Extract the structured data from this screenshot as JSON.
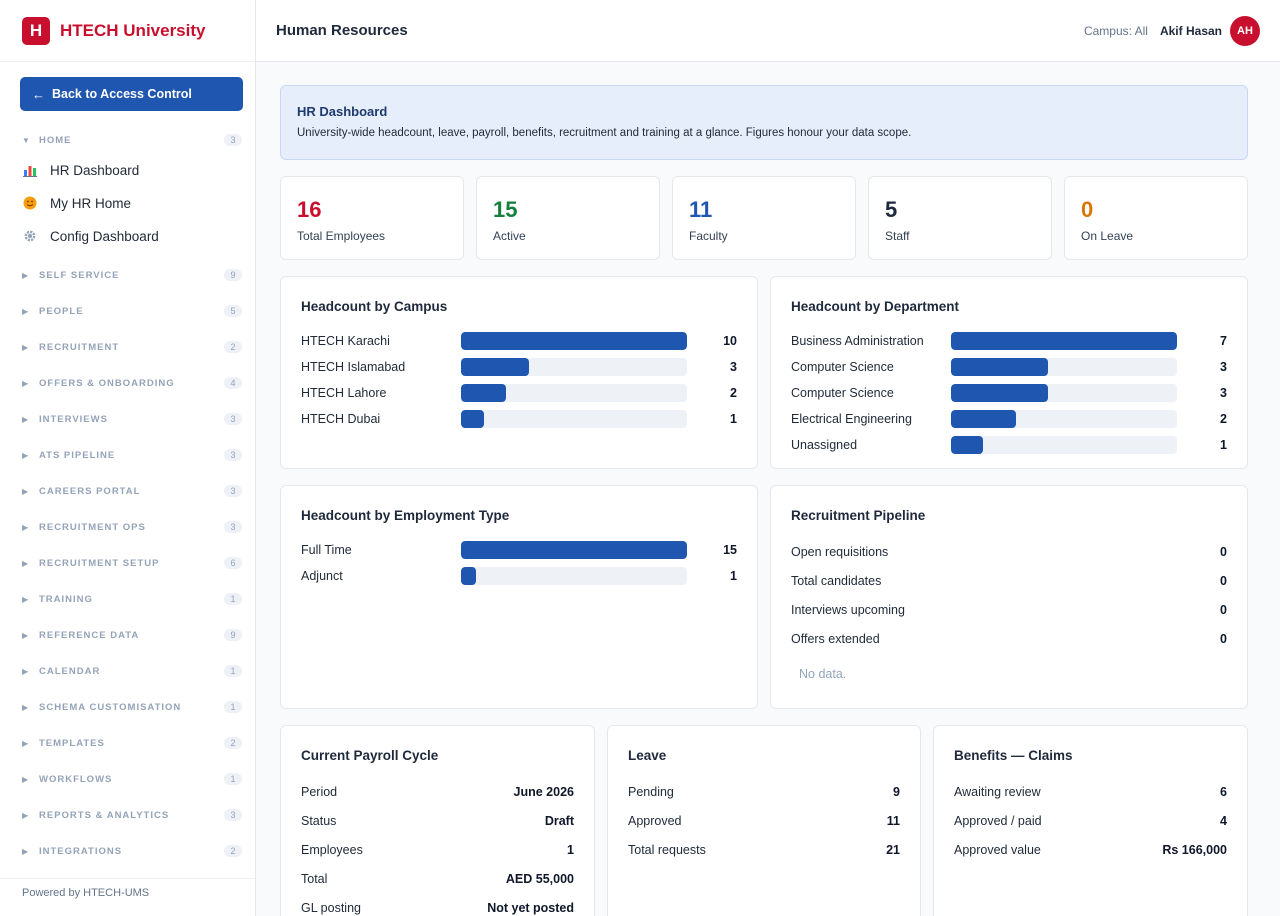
{
  "brand": {
    "logo_letter": "H",
    "name": "HTECH University"
  },
  "back_button": {
    "label": "Back to Access Control",
    "icon": "arrow-left-icon"
  },
  "sidebar": {
    "home": {
      "label": "HOME",
      "count": "3",
      "expanded": true
    },
    "home_items": [
      {
        "label": "HR Dashboard",
        "icon": "bar-chart-icon"
      },
      {
        "label": "My HR Home",
        "icon": "smiley-icon"
      },
      {
        "label": "Config Dashboard",
        "icon": "gear-icon"
      }
    ],
    "sections": [
      {
        "label": "SELF SERVICE",
        "count": "9"
      },
      {
        "label": "PEOPLE",
        "count": "5"
      },
      {
        "label": "RECRUITMENT",
        "count": "2"
      },
      {
        "label": "OFFERS & ONBOARDING",
        "count": "4"
      },
      {
        "label": "INTERVIEWS",
        "count": "3"
      },
      {
        "label": "ATS PIPELINE",
        "count": "3"
      },
      {
        "label": "CAREERS PORTAL",
        "count": "3"
      },
      {
        "label": "RECRUITMENT OPS",
        "count": "3"
      },
      {
        "label": "RECRUITMENT SETUP",
        "count": "6"
      },
      {
        "label": "TRAINING",
        "count": "1"
      },
      {
        "label": "REFERENCE DATA",
        "count": "9"
      },
      {
        "label": "CALENDAR",
        "count": "1"
      },
      {
        "label": "SCHEMA CUSTOMISATION",
        "count": "1"
      },
      {
        "label": "TEMPLATES",
        "count": "2"
      },
      {
        "label": "WORKFLOWS",
        "count": "1"
      },
      {
        "label": "REPORTS & ANALYTICS",
        "count": "3"
      },
      {
        "label": "INTEGRATIONS",
        "count": "2"
      }
    ],
    "footer": "Powered by HTECH-UMS"
  },
  "topbar": {
    "title": "Human Resources",
    "campus": "Campus: All",
    "user": "Akif Hasan",
    "avatar": "AH"
  },
  "banner": {
    "title": "HR Dashboard",
    "description": "University-wide headcount, leave, payroll, benefits, recruitment and training at a glance. Figures honour your data scope."
  },
  "stats": [
    {
      "value": "16",
      "label": "Total Employees",
      "color": "#c8102e"
    },
    {
      "value": "15",
      "label": "Active",
      "color": "#15803d"
    },
    {
      "value": "11",
      "label": "Faculty",
      "color": "#1e56b0"
    },
    {
      "value": "5",
      "label": "Staff",
      "color": "#1e293b"
    },
    {
      "value": "0",
      "label": "On Leave",
      "color": "#d97706"
    }
  ],
  "headcount_campus": {
    "title": "Headcount by Campus",
    "rows": [
      {
        "label": "HTECH Karachi",
        "value": 10
      },
      {
        "label": "HTECH Islamabad",
        "value": 3
      },
      {
        "label": "HTECH Lahore",
        "value": 2
      },
      {
        "label": "HTECH Dubai",
        "value": 1
      }
    ]
  },
  "headcount_department": {
    "title": "Headcount by Department",
    "rows": [
      {
        "label": "Business Administration",
        "value": 7
      },
      {
        "label": "Computer Science",
        "value": 3
      },
      {
        "label": "Computer Science",
        "value": 3
      },
      {
        "label": "Electrical Engineering",
        "value": 2
      },
      {
        "label": "Unassigned",
        "value": 1
      }
    ]
  },
  "headcount_type": {
    "title": "Headcount by Employment Type",
    "rows": [
      {
        "label": "Full Time",
        "value": 15
      },
      {
        "label": "Adjunct",
        "value": 1
      }
    ]
  },
  "recruitment": {
    "title": "Recruitment Pipeline",
    "rows": [
      {
        "label": "Open requisitions",
        "value": "0"
      },
      {
        "label": "Total candidates",
        "value": "0"
      },
      {
        "label": "Interviews upcoming",
        "value": "0"
      },
      {
        "label": "Offers extended",
        "value": "0"
      }
    ],
    "empty": "No data."
  },
  "payroll": {
    "title": "Current Payroll Cycle",
    "rows": [
      {
        "label": "Period",
        "value": "June 2026"
      },
      {
        "label": "Status",
        "value": "Draft"
      },
      {
        "label": "Employees",
        "value": "1"
      },
      {
        "label": "Total",
        "value": "AED 55,000"
      },
      {
        "label": "GL posting",
        "value": "Not yet posted"
      }
    ]
  },
  "leave": {
    "title": "Leave",
    "rows": [
      {
        "label": "Pending",
        "value": "9"
      },
      {
        "label": "Approved",
        "value": "11"
      },
      {
        "label": "Total requests",
        "value": "21"
      }
    ]
  },
  "benefits": {
    "title": "Benefits — Claims",
    "rows": [
      {
        "label": "Awaiting review",
        "value": "6"
      },
      {
        "label": "Approved / paid",
        "value": "4"
      },
      {
        "label": "Approved value",
        "value": "Rs 166,000"
      }
    ]
  },
  "colors": {
    "brand": "#c8102e",
    "primary": "#1e56b0"
  }
}
